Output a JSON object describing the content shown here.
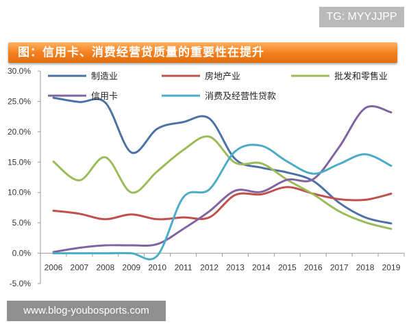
{
  "badge": "TG: MYYJJPP",
  "watermark": "www.blog-youbosports.com",
  "chart_data": {
    "type": "line",
    "title": "图：信用卡、消费经营贷质量的重要性在提升",
    "xlabel": "",
    "ylabel": "",
    "categories": [
      "2006",
      "2007",
      "2008",
      "2009",
      "2010",
      "2011",
      "2012",
      "2013",
      "2014",
      "2015",
      "2016",
      "2017",
      "2018",
      "2019"
    ],
    "ylim": [
      -5,
      30
    ],
    "yticks": [
      -5,
      0,
      5,
      10,
      15,
      20,
      25,
      30
    ],
    "ytick_labels": [
      "-5.0%",
      "0.0%",
      "5.0%",
      "10.0%",
      "15.0%",
      "20.0%",
      "25.0%",
      "30.0%"
    ],
    "grid": false,
    "legend_position": "top",
    "series": [
      {
        "name": "制造业",
        "color": "#4a72a4",
        "values": [
          25.6,
          24.9,
          24.8,
          16.6,
          20.5,
          21.6,
          22.2,
          15.5,
          14.1,
          13.3,
          11.9,
          8.3,
          5.9,
          4.9
        ]
      },
      {
        "name": "房地产业",
        "color": "#c0504d",
        "values": [
          7.0,
          6.5,
          5.6,
          6.4,
          5.6,
          5.9,
          5.9,
          9.6,
          9.7,
          10.9,
          9.8,
          8.9,
          8.8,
          9.8
        ]
      },
      {
        "name": "批发和零售业",
        "color": "#9bbb59",
        "values": [
          15.1,
          12.0,
          15.8,
          10.0,
          13.5,
          17.0,
          19.2,
          14.9,
          14.8,
          12.1,
          9.7,
          6.9,
          5.1,
          4.0
        ]
      },
      {
        "name": "信用卡",
        "color": "#8064a2",
        "values": [
          0.2,
          0.9,
          1.3,
          1.3,
          1.5,
          4.0,
          6.9,
          10.3,
          10.1,
          12.1,
          12.2,
          17.5,
          23.9,
          23.2
        ]
      },
      {
        "name": "消费及经营性贷款",
        "color": "#4bacc6",
        "values": [
          0.0,
          0.0,
          0.0,
          0.0,
          -0.4,
          9.2,
          10.5,
          16.8,
          17.7,
          15.1,
          13.1,
          14.7,
          16.3,
          14.4
        ]
      }
    ]
  }
}
